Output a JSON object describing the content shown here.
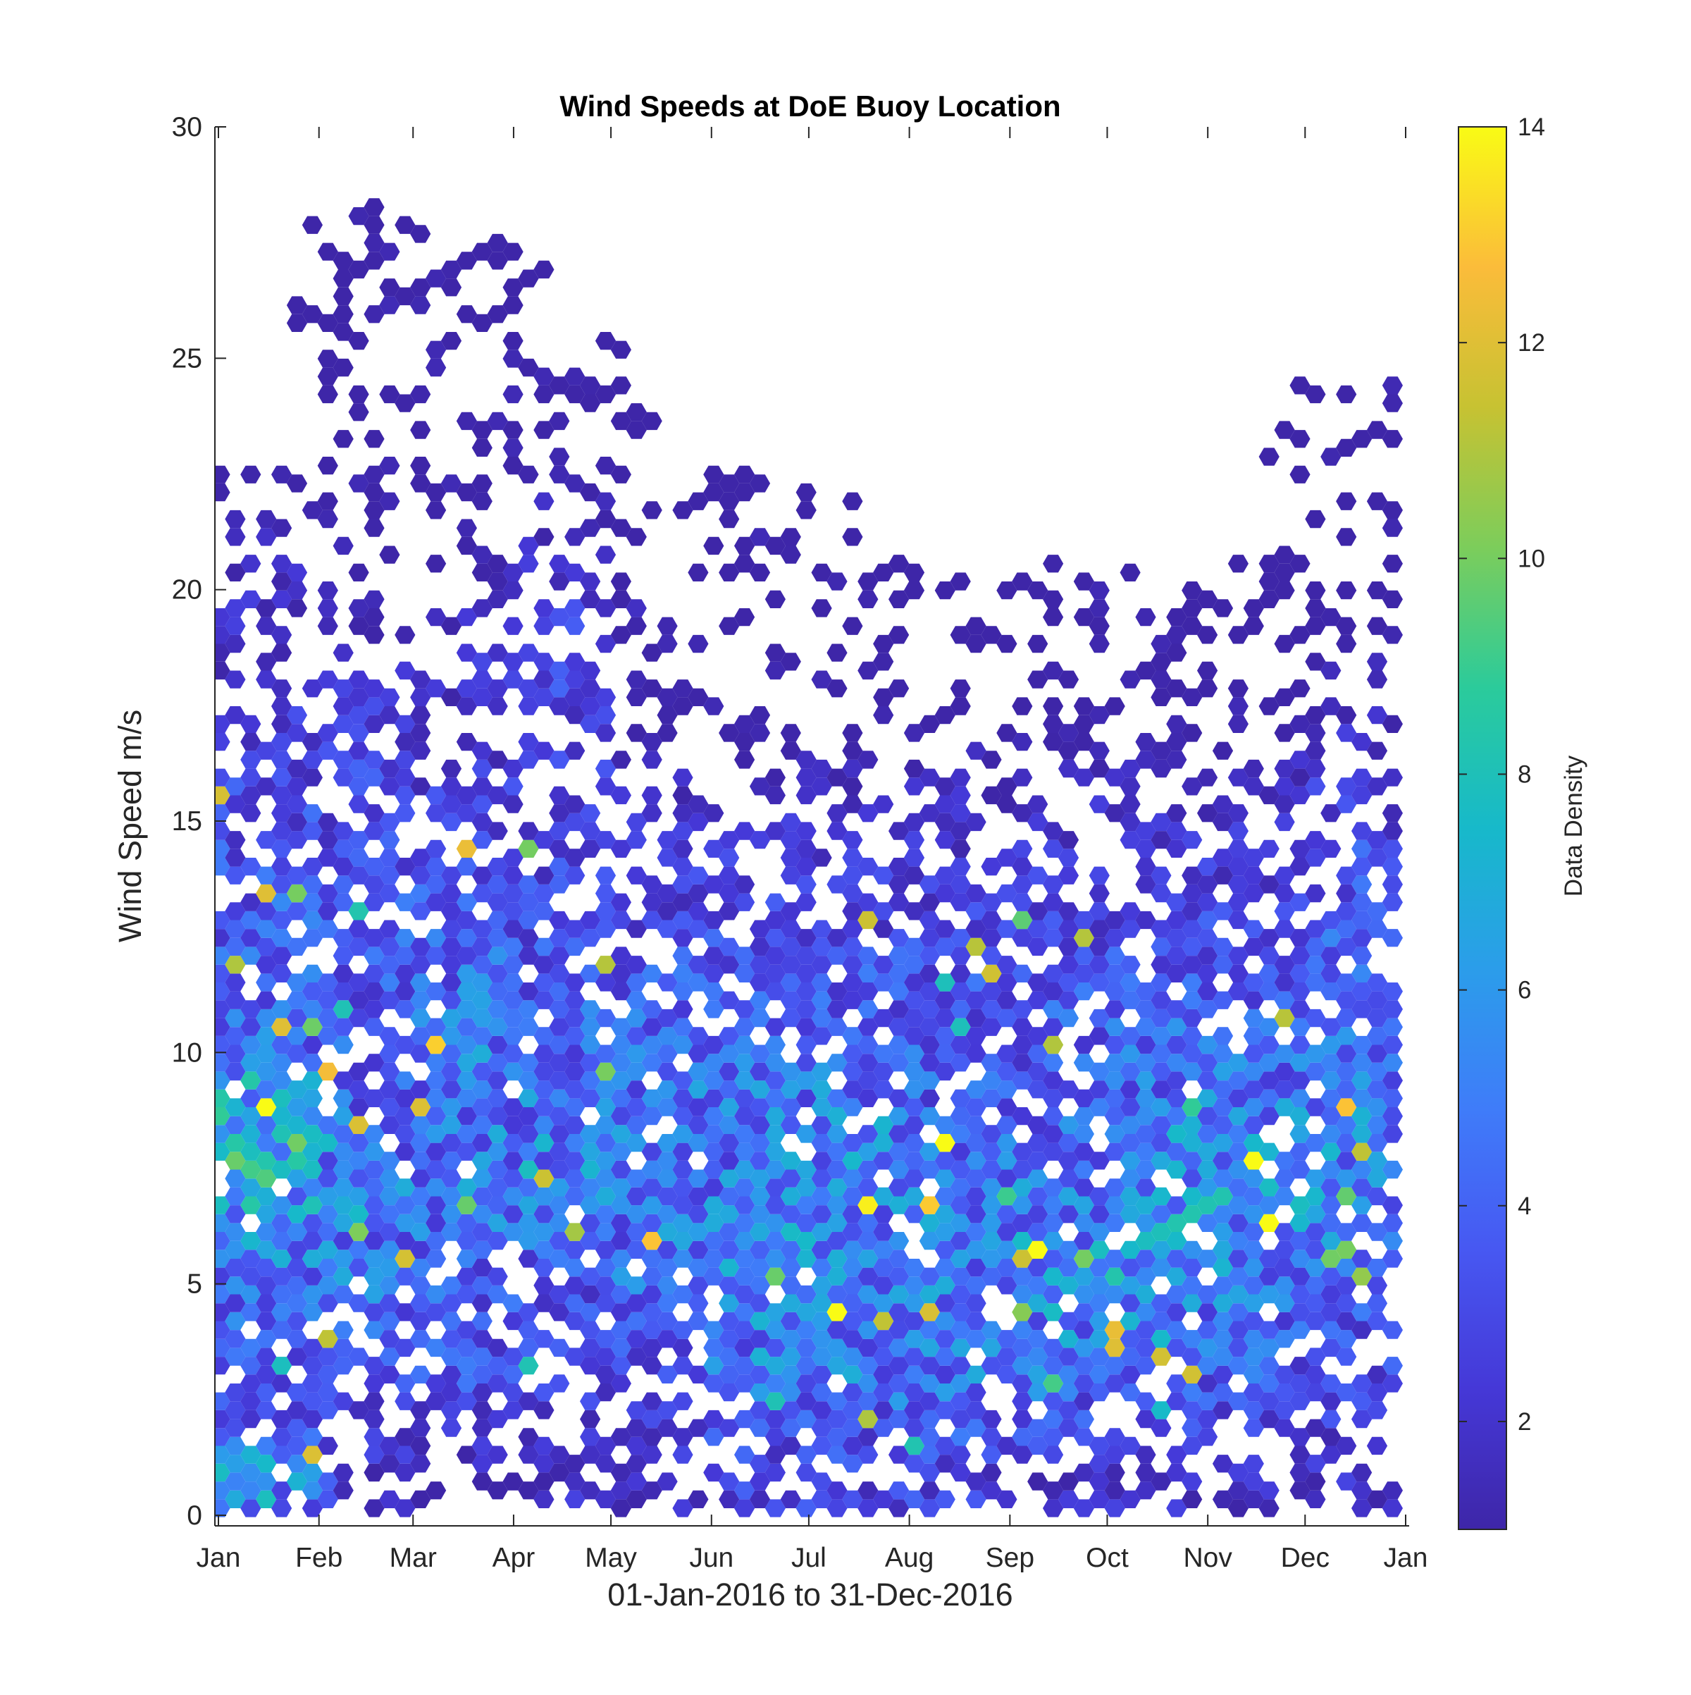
{
  "chart_data": {
    "type": "heatmap",
    "subtype": "hexagonal-binning",
    "title": "Wind Speeds at DoE Buoy Location",
    "xlabel": "01-Jan-2016 to 31-Dec-2016",
    "ylabel": "Wind Speed m/s",
    "x_axis": {
      "type": "date",
      "range": [
        "2016-01-01",
        "2016-12-31"
      ],
      "tick_labels": [
        "Jan",
        "Feb",
        "Mar",
        "Apr",
        "May",
        "Jun",
        "Jul",
        "Aug",
        "Sep",
        "Oct",
        "Nov",
        "Dec",
        "Jan"
      ],
      "tick_dates": [
        "2016-01-01",
        "2016-02-01",
        "2016-03-01",
        "2016-04-01",
        "2016-05-01",
        "2016-06-01",
        "2016-07-01",
        "2016-08-01",
        "2016-09-01",
        "2016-10-01",
        "2016-11-01",
        "2016-12-01",
        "2017-01-01"
      ]
    },
    "y_axis": {
      "range": [
        0,
        30
      ],
      "tick_labels": [
        "0",
        "5",
        "10",
        "15",
        "20",
        "25",
        "30"
      ],
      "tick_values": [
        0,
        5,
        10,
        15,
        20,
        25,
        30
      ]
    },
    "colorbar": {
      "label": "Data Density",
      "colormap": "parula",
      "range": [
        1,
        14
      ],
      "tick_labels": [
        "2",
        "4",
        "6",
        "8",
        "10",
        "12",
        "14"
      ],
      "tick_values": [
        2,
        4,
        6,
        8,
        10,
        12,
        14
      ]
    },
    "grid": false,
    "legend": "none",
    "monthly_profiles": [
      {
        "month": "Jan",
        "bins": [
          [
            1,
            6
          ],
          [
            3,
            3
          ],
          [
            5,
            5
          ],
          [
            7,
            7
          ],
          [
            8,
            9
          ],
          [
            10,
            5
          ],
          [
            12,
            4
          ],
          [
            14,
            4
          ],
          [
            16,
            3
          ],
          [
            18,
            2
          ],
          [
            20,
            2
          ],
          [
            22,
            1
          ]
        ]
      },
      {
        "month": "Feb",
        "bins": [
          [
            1,
            2
          ],
          [
            3,
            3
          ],
          [
            5,
            5
          ],
          [
            7,
            5
          ],
          [
            9,
            4
          ],
          [
            11,
            4
          ],
          [
            13,
            4
          ],
          [
            15,
            3
          ],
          [
            17,
            3
          ],
          [
            19,
            1
          ],
          [
            22,
            1
          ],
          [
            25,
            1
          ],
          [
            28,
            1
          ]
        ]
      },
      {
        "month": "Mar",
        "bins": [
          [
            2,
            2
          ],
          [
            3,
            4
          ],
          [
            5,
            4
          ],
          [
            7,
            5
          ],
          [
            9,
            5
          ],
          [
            11,
            5
          ],
          [
            13,
            4
          ],
          [
            15,
            3
          ],
          [
            17,
            2
          ],
          [
            19,
            2
          ],
          [
            21,
            1
          ],
          [
            23,
            1
          ],
          [
            25,
            1
          ],
          [
            27,
            1
          ]
        ]
      },
      {
        "month": "Apr",
        "bins": [
          [
            1,
            2
          ],
          [
            3,
            3
          ],
          [
            5,
            3
          ],
          [
            7,
            6
          ],
          [
            9,
            5
          ],
          [
            11,
            4
          ],
          [
            13,
            3
          ],
          [
            15,
            3
          ],
          [
            17,
            3
          ],
          [
            19,
            3
          ],
          [
            21,
            2
          ],
          [
            23,
            1
          ],
          [
            25,
            1
          ]
        ]
      },
      {
        "month": "May",
        "bins": [
          [
            1,
            2
          ],
          [
            3,
            3
          ],
          [
            5,
            5
          ],
          [
            7,
            5
          ],
          [
            9,
            5
          ],
          [
            11,
            4
          ],
          [
            13,
            3
          ],
          [
            15,
            2
          ],
          [
            17,
            1
          ],
          [
            19,
            1
          ]
        ]
      },
      {
        "month": "Jun",
        "bins": [
          [
            1,
            3
          ],
          [
            3,
            5
          ],
          [
            5,
            6
          ],
          [
            7,
            5
          ],
          [
            9,
            5
          ],
          [
            11,
            4
          ],
          [
            13,
            3
          ],
          [
            15,
            2
          ],
          [
            17,
            1
          ],
          [
            19,
            1
          ],
          [
            22,
            1
          ]
        ]
      },
      {
        "month": "Jul",
        "bins": [
          [
            1,
            3
          ],
          [
            3,
            5
          ],
          [
            5,
            5
          ],
          [
            7,
            6
          ],
          [
            9,
            5
          ],
          [
            11,
            4
          ],
          [
            13,
            3
          ],
          [
            15,
            2
          ],
          [
            17,
            1
          ],
          [
            20,
            1
          ]
        ]
      },
      {
        "month": "Aug",
        "bins": [
          [
            1,
            3
          ],
          [
            3,
            5
          ],
          [
            5,
            5
          ],
          [
            7,
            5
          ],
          [
            9,
            4
          ],
          [
            11,
            4
          ],
          [
            13,
            3
          ],
          [
            15,
            2
          ],
          [
            17,
            1
          ]
        ]
      },
      {
        "month": "Sep",
        "bins": [
          [
            1,
            2
          ],
          [
            3,
            5
          ],
          [
            5,
            6
          ],
          [
            7,
            5
          ],
          [
            9,
            4
          ],
          [
            11,
            4
          ],
          [
            13,
            3
          ],
          [
            15,
            2
          ],
          [
            17,
            1
          ],
          [
            20,
            1
          ]
        ]
      },
      {
        "month": "Oct",
        "bins": [
          [
            1,
            2
          ],
          [
            3,
            4
          ],
          [
            5,
            6
          ],
          [
            7,
            6
          ],
          [
            9,
            5
          ],
          [
            11,
            4
          ],
          [
            13,
            3
          ],
          [
            15,
            2
          ],
          [
            17,
            1
          ],
          [
            20,
            1
          ]
        ]
      },
      {
        "month": "Nov",
        "bins": [
          [
            1,
            2
          ],
          [
            3,
            4
          ],
          [
            5,
            5
          ],
          [
            7,
            6
          ],
          [
            9,
            5
          ],
          [
            11,
            4
          ],
          [
            13,
            3
          ],
          [
            15,
            2
          ],
          [
            17,
            1
          ]
        ]
      },
      {
        "month": "Dec",
        "bins": [
          [
            1,
            2
          ],
          [
            3,
            3
          ],
          [
            5,
            4
          ],
          [
            7,
            6
          ],
          [
            9,
            5
          ],
          [
            11,
            4
          ],
          [
            13,
            4
          ],
          [
            15,
            3
          ],
          [
            17,
            2
          ],
          [
            19,
            1
          ],
          [
            21,
            1
          ],
          [
            24,
            1
          ]
        ]
      }
    ]
  }
}
